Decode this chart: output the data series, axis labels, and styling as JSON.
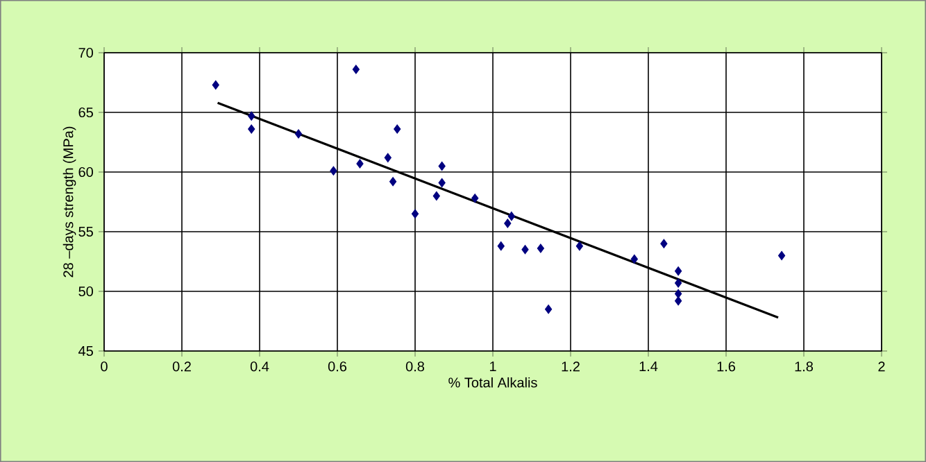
{
  "chart_data": {
    "type": "scatter",
    "xlabel": "% Total Alkalis",
    "ylabel": "28 –days strength (MPa)",
    "xlim": [
      0,
      2
    ],
    "ylim": [
      45,
      70
    ],
    "xticks": [
      0,
      0.2,
      0.4,
      0.6,
      0.8,
      1,
      1.2,
      1.4,
      1.6,
      1.8,
      2
    ],
    "yticks": [
      45,
      50,
      55,
      60,
      65,
      70
    ],
    "grid": true,
    "series": [
      {
        "color": "#000080",
        "marker": "diamond",
        "x": [
          0.287,
          0.379,
          0.379,
          0.5,
          0.59,
          0.648,
          0.658,
          0.73,
          0.743,
          0.754,
          0.8,
          0.855,
          0.869,
          0.869,
          0.954,
          1.021,
          1.038,
          1.048,
          1.083,
          1.123,
          1.143,
          1.223,
          1.364,
          1.44,
          1.477,
          1.477,
          1.477,
          1.477,
          1.743
        ],
        "values": [
          67.3,
          64.7,
          63.6,
          63.2,
          60.1,
          68.6,
          60.7,
          61.2,
          59.2,
          63.6,
          56.5,
          58.0,
          60.5,
          59.1,
          57.8,
          53.8,
          55.7,
          56.3,
          53.5,
          53.6,
          48.5,
          53.8,
          52.7,
          54.0,
          51.7,
          50.7,
          49.8,
          49.2,
          53.0
        ]
      },
      {
        "type": "line",
        "color": "#000000",
        "marker": "none",
        "x": [
          0.292,
          1.734
        ],
        "values": [
          65.8,
          47.8
        ]
      }
    ]
  }
}
